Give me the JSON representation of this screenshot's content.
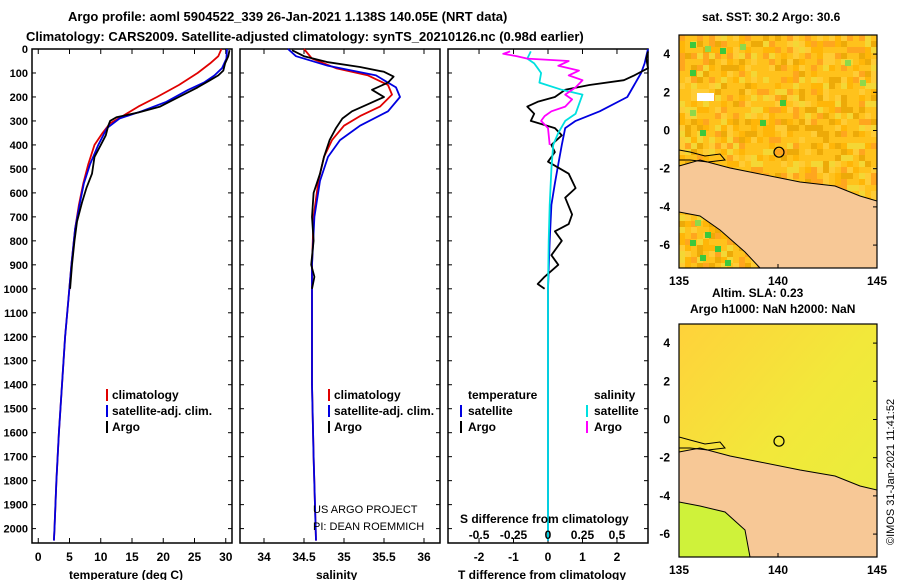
{
  "header": {
    "line1": "Argo profile: aoml 5904522_339 26-Jan-2021 1.138S 140.05E (NRT data)",
    "line2": "Climatology: CARS2009. Satellite-adjusted climatology: synTS_20210126.nc (0.98d earlier)"
  },
  "colors": {
    "clim": "#e00000",
    "sat": "#0000e0",
    "argo": "#000000",
    "sat_s": "#00e0e0",
    "argo_s": "#ff00ff"
  },
  "depth_axis": {
    "ticks": [
      0,
      100,
      200,
      300,
      400,
      500,
      600,
      700,
      800,
      900,
      1000,
      1100,
      1200,
      1300,
      1400,
      1500,
      1600,
      1700,
      1800,
      1900,
      2000
    ],
    "range": [
      0,
      2060
    ]
  },
  "chart_data": [
    {
      "id": "temperature",
      "type": "line",
      "xlabel": "temperature (deg C)",
      "ylabel": "depth",
      "xlim": [
        -1,
        31
      ],
      "xticks": [
        "0",
        "5",
        "10",
        "15",
        "20",
        "25",
        "30"
      ],
      "xtick_values": [
        0,
        5,
        10,
        15,
        20,
        25,
        30
      ],
      "legend": [
        {
          "label": "climatology",
          "color": "#e00000"
        },
        {
          "label": "satellite-adj. clim.",
          "color": "#0000e0"
        },
        {
          "label": "Argo",
          "color": "#000000"
        }
      ],
      "series": [
        {
          "name": "climatology",
          "color": "#e00000",
          "points": [
            [
              29.3,
              0
            ],
            [
              28.8,
              30
            ],
            [
              27.5,
              60
            ],
            [
              25.5,
              100
            ],
            [
              22.5,
              150
            ],
            [
              19.0,
              200
            ],
            [
              16.0,
              240
            ],
            [
              13.5,
              280
            ],
            [
              11.5,
              310
            ],
            [
              10.3,
              350
            ],
            [
              9.0,
              400
            ],
            [
              8.0,
              480
            ],
            [
              7.2,
              560
            ],
            [
              6.5,
              650
            ],
            [
              5.9,
              750
            ],
            [
              5.3,
              900
            ],
            [
              4.8,
              1050
            ],
            [
              4.3,
              1200
            ],
            [
              3.8,
              1400
            ],
            [
              3.3,
              1600
            ],
            [
              2.9,
              1800
            ],
            [
              2.6,
              2000
            ],
            [
              2.5,
              2050
            ]
          ]
        },
        {
          "name": "satellite-adj. clim.",
          "color": "#0000e0",
          "points": [
            [
              30.2,
              0
            ],
            [
              30.1,
              40
            ],
            [
              29.4,
              80
            ],
            [
              28.2,
              110
            ],
            [
              26.5,
              140
            ],
            [
              24.0,
              170
            ],
            [
              20.5,
              220
            ],
            [
              16.5,
              260
            ],
            [
              13.0,
              290
            ],
            [
              11.0,
              330
            ],
            [
              9.6,
              400
            ],
            [
              8.3,
              480
            ],
            [
              7.3,
              560
            ],
            [
              6.6,
              650
            ],
            [
              5.9,
              750
            ],
            [
              5.3,
              900
            ],
            [
              4.8,
              1050
            ],
            [
              4.3,
              1200
            ],
            [
              3.8,
              1400
            ],
            [
              3.3,
              1600
            ],
            [
              2.9,
              1800
            ],
            [
              2.6,
              2000
            ],
            [
              2.5,
              2050
            ]
          ]
        },
        {
          "name": "Argo",
          "color": "#000000",
          "points": [
            [
              30.6,
              5
            ],
            [
              30.4,
              30
            ],
            [
              29.9,
              60
            ],
            [
              29.6,
              90
            ],
            [
              28.8,
              110
            ],
            [
              27.5,
              130
            ],
            [
              25.5,
              160
            ],
            [
              22.5,
              200
            ],
            [
              19.5,
              240
            ],
            [
              16.0,
              265
            ],
            [
              12.5,
              285
            ],
            [
              11.5,
              300
            ],
            [
              11.2,
              320
            ],
            [
              10.8,
              360
            ],
            [
              10.0,
              400
            ],
            [
              9.0,
              450
            ],
            [
              8.6,
              520
            ],
            [
              7.7,
              580
            ],
            [
              7.0,
              640
            ],
            [
              6.2,
              720
            ],
            [
              5.8,
              800
            ],
            [
              5.4,
              900
            ],
            [
              5.1,
              1000
            ]
          ]
        }
      ]
    },
    {
      "id": "salinity",
      "type": "line",
      "xlabel": "salinity",
      "ylabel": "depth",
      "xlim": [
        33.7,
        36.2
      ],
      "xticks": [
        "34",
        "34.5",
        "35",
        "35.5",
        "36"
      ],
      "xtick_values": [
        34,
        34.5,
        35,
        35.5,
        36
      ],
      "legend": [
        {
          "label": "climatology",
          "color": "#e00000"
        },
        {
          "label": "satellite-adj. clim.",
          "color": "#0000e0"
        },
        {
          "label": "Argo",
          "color": "#000000"
        }
      ],
      "annotation": [
        "US ARGO PROJECT",
        "PI: DEAN ROEMMICH"
      ],
      "series": [
        {
          "name": "climatology",
          "color": "#e00000",
          "points": [
            [
              34.5,
              0
            ],
            [
              34.6,
              40
            ],
            [
              34.9,
              80
            ],
            [
              35.3,
              110
            ],
            [
              35.55,
              150
            ],
            [
              35.6,
              190
            ],
            [
              35.45,
              240
            ],
            [
              35.2,
              280
            ],
            [
              35.0,
              320
            ],
            [
              34.85,
              380
            ],
            [
              34.75,
              450
            ],
            [
              34.68,
              550
            ],
            [
              34.62,
              700
            ],
            [
              34.6,
              900
            ],
            [
              34.6,
              1100
            ],
            [
              34.6,
              1400
            ],
            [
              34.62,
              1700
            ],
            [
              34.65,
              2050
            ]
          ]
        },
        {
          "name": "satellite-adj. clim.",
          "color": "#0000e0",
          "points": [
            [
              34.3,
              0
            ],
            [
              34.4,
              30
            ],
            [
              34.8,
              70
            ],
            [
              35.4,
              110
            ],
            [
              35.65,
              160
            ],
            [
              35.7,
              200
            ],
            [
              35.55,
              260
            ],
            [
              35.2,
              320
            ],
            [
              34.95,
              380
            ],
            [
              34.8,
              450
            ],
            [
              34.7,
              550
            ],
            [
              34.63,
              700
            ],
            [
              34.6,
              900
            ],
            [
              34.6,
              1100
            ],
            [
              34.6,
              1400
            ],
            [
              34.62,
              1700
            ],
            [
              34.65,
              2050
            ]
          ]
        },
        {
          "name": "Argo",
          "color": "#000000",
          "points": [
            [
              34.35,
              5
            ],
            [
              34.5,
              30
            ],
            [
              34.8,
              55
            ],
            [
              35.2,
              75
            ],
            [
              35.5,
              95
            ],
            [
              35.62,
              115
            ],
            [
              35.55,
              140
            ],
            [
              35.35,
              170
            ],
            [
              35.5,
              200
            ],
            [
              35.3,
              230
            ],
            [
              35.1,
              260
            ],
            [
              34.98,
              290
            ],
            [
              34.9,
              330
            ],
            [
              34.82,
              380
            ],
            [
              34.75,
              450
            ],
            [
              34.7,
              520
            ],
            [
              34.62,
              600
            ],
            [
              34.6,
              700
            ],
            [
              34.62,
              800
            ],
            [
              34.59,
              900
            ],
            [
              34.63,
              950
            ],
            [
              34.6,
              1000
            ]
          ]
        }
      ]
    },
    {
      "id": "difference",
      "type": "line",
      "xlabel": "T difference from climatology",
      "ylabel": "depth",
      "xlim": [
        -2.9,
        2.9
      ],
      "xticks": [
        "-2",
        "-1",
        "0",
        "1",
        "2"
      ],
      "xtick_values": [
        -2,
        -1,
        0,
        1,
        2
      ],
      "top_axis_label": "S difference from climatology",
      "top_ticks": [
        "-0.5",
        "-0.25",
        "0",
        "0.25",
        "0.5"
      ],
      "top_tick_positions": [
        -2,
        -1,
        0,
        1,
        2
      ],
      "legend_left": [
        {
          "label": "temperature",
          "color": "#000000"
        },
        {
          "label": "satellite",
          "color": "#0000e0"
        },
        {
          "label": "Argo",
          "color": "#000000"
        }
      ],
      "legend_right": [
        {
          "label": "salinity",
          "color": "#000000"
        },
        {
          "label": "satellite",
          "color": "#00e0e0"
        },
        {
          "label": "Argo",
          "color": "#ff00ff"
        }
      ],
      "series": [
        {
          "name": "T satellite",
          "color": "#0000e0",
          "points": [
            [
              2.9,
              0
            ],
            [
              2.8,
              60
            ],
            [
              2.7,
              100
            ],
            [
              2.5,
              150
            ],
            [
              2.3,
              200
            ],
            [
              1.5,
              260
            ],
            [
              0.8,
              300
            ],
            [
              0.5,
              330
            ],
            [
              0.4,
              400
            ],
            [
              0.3,
              480
            ],
            [
              0.2,
              560
            ],
            [
              0.1,
              650
            ],
            [
              0.05,
              800
            ],
            [
              0.0,
              1000
            ],
            [
              0.0,
              1400
            ],
            [
              0.0,
              2050
            ]
          ]
        },
        {
          "name": "T Argo",
          "color": "#000000",
          "points": [
            [
              2.9,
              10
            ],
            [
              2.85,
              40
            ],
            [
              2.9,
              80
            ],
            [
              2.5,
              110
            ],
            [
              2.2,
              130
            ],
            [
              1.2,
              150
            ],
            [
              0.5,
              170
            ],
            [
              0.2,
              200
            ],
            [
              -0.3,
              220
            ],
            [
              -0.6,
              240
            ],
            [
              -0.4,
              270
            ],
            [
              -0.5,
              300
            ],
            [
              0.2,
              330
            ],
            [
              0.4,
              360
            ],
            [
              0.1,
              400
            ],
            [
              0.2,
              430
            ],
            [
              0.0,
              470
            ],
            [
              0.6,
              520
            ],
            [
              0.8,
              580
            ],
            [
              0.5,
              620
            ],
            [
              0.7,
              690
            ],
            [
              0.6,
              730
            ],
            [
              0.2,
              760
            ],
            [
              0.4,
              800
            ],
            [
              0.1,
              860
            ],
            [
              0.3,
              900
            ],
            [
              -0.1,
              950
            ],
            [
              -0.3,
              980
            ],
            [
              -0.1,
              1000
            ]
          ]
        },
        {
          "name": "S satellite",
          "color": "#00e0e0",
          "points": [
            [
              -0.5,
              10
            ],
            [
              -0.6,
              40
            ],
            [
              -0.4,
              60
            ],
            [
              -0.3,
              80
            ],
            [
              -0.2,
              100
            ],
            [
              -0.25,
              140
            ],
            [
              0.4,
              170
            ],
            [
              1.0,
              190
            ],
            [
              0.9,
              230
            ],
            [
              0.8,
              270
            ],
            [
              0.5,
              300
            ],
            [
              0.3,
              350
            ],
            [
              0.15,
              400
            ],
            [
              0.1,
              500
            ],
            [
              0.05,
              650
            ],
            [
              0.02,
              800
            ],
            [
              0.0,
              1000
            ],
            [
              0.0,
              1500
            ],
            [
              0.0,
              2050
            ]
          ]
        },
        {
          "name": "S Argo",
          "color": "#ff00ff",
          "points": [
            [
              -1.1,
              10
            ],
            [
              -1.3,
              20
            ],
            [
              -0.9,
              30
            ],
            [
              -0.6,
              40
            ],
            [
              0.6,
              50
            ],
            [
              0.3,
              70
            ],
            [
              0.9,
              90
            ],
            [
              0.6,
              110
            ],
            [
              1.0,
              130
            ],
            [
              0.8,
              160
            ],
            [
              0.5,
              190
            ],
            [
              0.7,
              210
            ],
            [
              0.5,
              240
            ],
            [
              0.1,
              260
            ],
            [
              -0.1,
              280
            ],
            [
              -0.2,
              300
            ],
            [
              0.0,
              330
            ],
            [
              0.05,
              400
            ]
          ]
        }
      ]
    }
  ],
  "maps": [
    {
      "id": "sst-map",
      "title_line1": "sat. SST: 30.2 Argo: 30.6",
      "title_line2": "",
      "xticks": [
        "135",
        "140",
        "145"
      ],
      "xtick_values": [
        135,
        140,
        145
      ],
      "yticks": [
        "4",
        "2",
        "0",
        "-2",
        "-4",
        "-6"
      ],
      "ytick_values": [
        4,
        2,
        0,
        -2,
        -4,
        -6
      ],
      "lon_range": [
        135,
        145
      ],
      "lat_range": [
        -7.2,
        5
      ],
      "float_position": [
        140.05,
        -1.138
      ]
    },
    {
      "id": "sla-map",
      "title_line1": "Altim. SLA: 0.23",
      "title_line2": "Argo h1000: NaN h2000: NaN",
      "xticks": [
        "135",
        "140",
        "145"
      ],
      "xtick_values": [
        135,
        140,
        145
      ],
      "yticks": [
        "4",
        "2",
        "0",
        "-2",
        "-4",
        "-6"
      ],
      "ytick_values": [
        4,
        2,
        0,
        -2,
        -4,
        -6
      ],
      "lon_range": [
        135,
        145
      ],
      "lat_range": [
        -7.2,
        5
      ],
      "float_position": [
        140.05,
        -1.138
      ]
    }
  ],
  "footer": {
    "stamp": "©IMOS 31-Jan-2021 11:41:52"
  }
}
